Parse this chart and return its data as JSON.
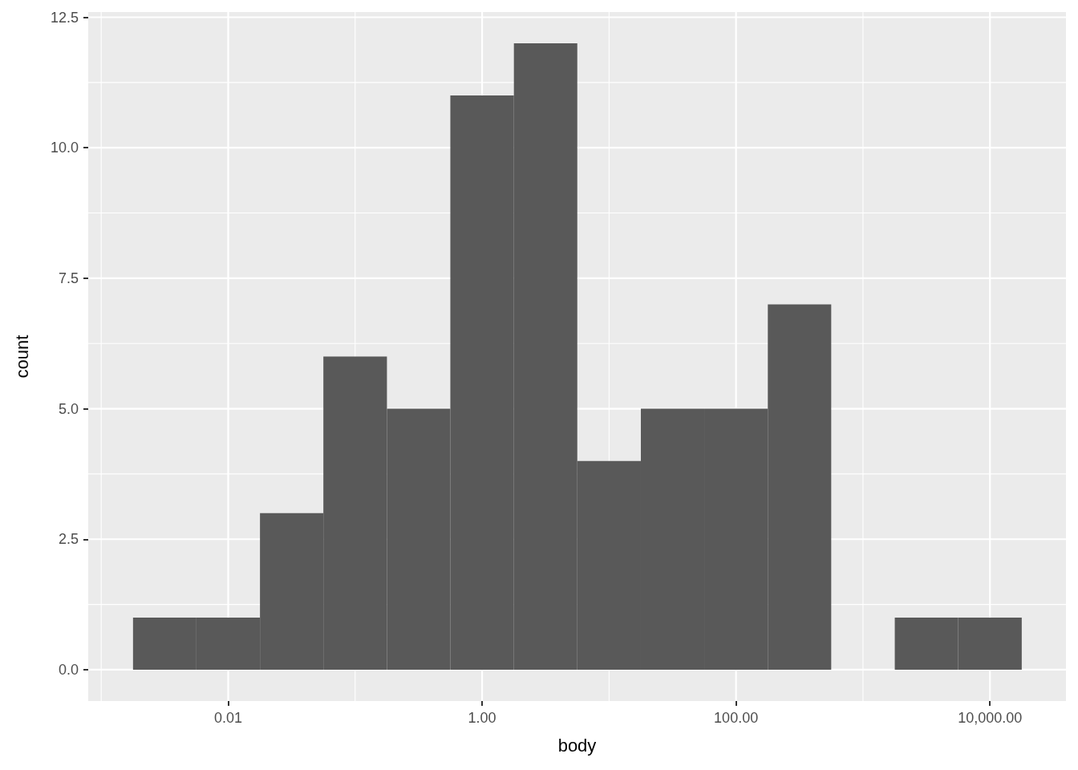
{
  "chart_data": {
    "type": "histogram",
    "xlabel": "body",
    "ylabel": "count",
    "bins": [
      0.00178,
      0.00562,
      0.0178,
      0.0562,
      0.178,
      0.562,
      1.78,
      5.62,
      17.8,
      56.2,
      178,
      562,
      1780,
      5620,
      17800
    ],
    "values": [
      1,
      1,
      3,
      6,
      5,
      11,
      12,
      4,
      5,
      5,
      7,
      0,
      1,
      1
    ],
    "color": "#595959",
    "log": "x",
    "xlim": [
      0.00079,
      39700
    ],
    "xticks": [
      {
        "value": 0.001,
        "label": null
      },
      0.01,
      {
        "value": 0.1,
        "label": null
      },
      {
        "value": 1,
        "label": "1.00"
      },
      {
        "value": 10,
        "label": null
      },
      {
        "value": 100,
        "label": "100.00"
      },
      {
        "value": 1000,
        "label": null
      },
      {
        "value": 10000,
        "label": "10,000.00"
      }
    ],
    "ylim": [
      -0.6,
      12.6
    ],
    "yticks": [
      {
        "value": 0,
        "label": "0.0"
      },
      {
        "value": 1.25,
        "label": null
      },
      2.5,
      {
        "value": 3.75,
        "label": null
      },
      {
        "value": 5,
        "label": "5.0"
      },
      {
        "value": 6.25,
        "label": null
      },
      7.5,
      {
        "value": 8.75,
        "label": null
      },
      {
        "value": 10,
        "label": "10.0"
      },
      {
        "value": 11.25,
        "label": null
      },
      12.5
    ],
    "grid": true
  }
}
